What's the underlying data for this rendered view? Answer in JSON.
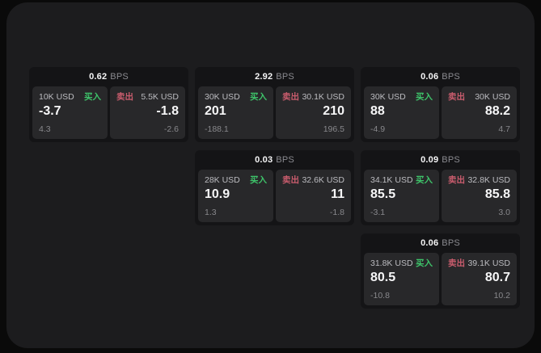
{
  "colors": {
    "buy_green": "#3ec46a",
    "sell_red": "#c95c6d",
    "panel_bg": "#1c1c1e",
    "card_bg": "#141416",
    "tile_bg": "#28282a"
  },
  "labels": {
    "bps": "BPS",
    "buy": "买入",
    "sell": "卖出"
  },
  "cards": [
    {
      "bps": "0.62",
      "buy": {
        "amount": "10K USD",
        "value": "-3.7",
        "sub": "4.3"
      },
      "sell": {
        "amount": "5.5K USD",
        "value": "-1.8",
        "sub": "-2.6"
      }
    },
    {
      "bps": "2.92",
      "buy": {
        "amount": "30K USD",
        "value": "201",
        "sub": "-188.1"
      },
      "sell": {
        "amount": "30.1K USD",
        "value": "210",
        "sub": "196.5"
      }
    },
    {
      "bps": "0.06",
      "buy": {
        "amount": "30K USD",
        "value": "88",
        "sub": "-4.9"
      },
      "sell": {
        "amount": "30K USD",
        "value": "88.2",
        "sub": "4.7"
      }
    },
    {
      "bps": "0.03",
      "buy": {
        "amount": "28K USD",
        "value": "10.9",
        "sub": "1.3"
      },
      "sell": {
        "amount": "32.6K USD",
        "value": "11",
        "sub": "-1.8"
      }
    },
    {
      "bps": "0.09",
      "buy": {
        "amount": "34.1K USD",
        "value": "85.5",
        "sub": "-3.1"
      },
      "sell": {
        "amount": "32.8K USD",
        "value": "85.8",
        "sub": "3.0"
      }
    },
    {
      "bps": "0.06",
      "buy": {
        "amount": "31.8K USD",
        "value": "80.5",
        "sub": "-10.8"
      },
      "sell": {
        "amount": "39.1K USD",
        "value": "80.7",
        "sub": "10.2"
      }
    }
  ]
}
